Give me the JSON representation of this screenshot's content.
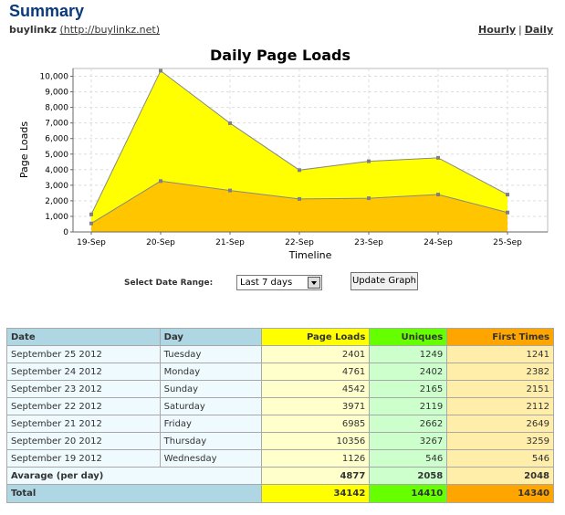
{
  "header": {
    "title": "Summary",
    "site_name": "buylinkz",
    "site_url": "(http://buylinkz.net)",
    "hourly_link": "Hourly",
    "separator": "|",
    "daily_link": "Daily"
  },
  "chart_data": {
    "type": "area",
    "title": "Daily Page Loads",
    "xlabel": "Timeline",
    "ylabel": "Page Loads",
    "categories": [
      "19-Sep",
      "20-Sep",
      "21-Sep",
      "22-Sep",
      "23-Sep",
      "24-Sep",
      "25-Sep"
    ],
    "series": [
      {
        "values": [
          1126,
          10356,
          6985,
          3971,
          4542,
          4761,
          2401
        ],
        "color": "#ffff00"
      },
      {
        "values": [
          546,
          3267,
          2662,
          2119,
          2165,
          2402,
          1249
        ],
        "color": "#ffc600"
      }
    ],
    "yticks": [
      "0",
      "1,000",
      "2,000",
      "3,000",
      "4,000",
      "5,000",
      "6,000",
      "7,000",
      "8,000",
      "9,000",
      "10,000"
    ],
    "ylim": [
      0,
      10500
    ],
    "grid": true,
    "legend": "none"
  },
  "controls": {
    "range_label": "Select Date Range:",
    "range_value": "Last 7 days",
    "update_button": "Update Graph"
  },
  "table": {
    "headers": {
      "date": "Date",
      "day": "Day",
      "loads": "Page Loads",
      "uniques": "Uniques",
      "first": "First Times"
    },
    "rows": [
      {
        "date": "September 25 2012",
        "day": "Tuesday",
        "loads": "2401",
        "uniques": "1249",
        "first": "1241"
      },
      {
        "date": "September 24 2012",
        "day": "Monday",
        "loads": "4761",
        "uniques": "2402",
        "first": "2382"
      },
      {
        "date": "September 23 2012",
        "day": "Sunday",
        "loads": "4542",
        "uniques": "2165",
        "first": "2151"
      },
      {
        "date": "September 22 2012",
        "day": "Saturday",
        "loads": "3971",
        "uniques": "2119",
        "first": "2112"
      },
      {
        "date": "September 21 2012",
        "day": "Friday",
        "loads": "6985",
        "uniques": "2662",
        "first": "2649"
      },
      {
        "date": "September 20 2012",
        "day": "Thursday",
        "loads": "10356",
        "uniques": "3267",
        "first": "3259"
      },
      {
        "date": "September 19 2012",
        "day": "Wednesday",
        "loads": "1126",
        "uniques": "546",
        "first": "546"
      }
    ],
    "average": {
      "label": "Avarage (per day)",
      "loads": "4877",
      "uniques": "2058",
      "first": "2048"
    },
    "total": {
      "label": "Total",
      "loads": "34142",
      "uniques": "14410",
      "first": "14340"
    }
  }
}
